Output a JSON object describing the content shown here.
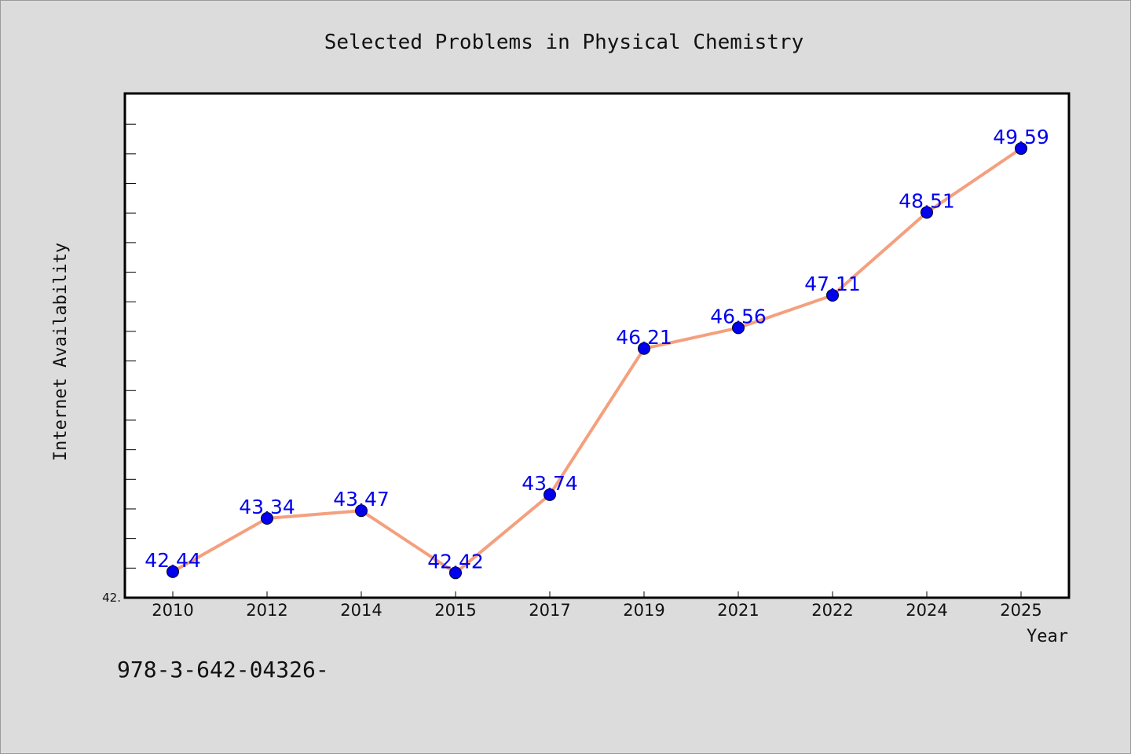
{
  "chart_data": {
    "type": "line",
    "title": "Selected Problems in Physical Chemistry",
    "xlabel": "Year",
    "ylabel": "Internet Availability",
    "categories": [
      "2010",
      "2012",
      "2014",
      "2015",
      "2017",
      "2019",
      "2021",
      "2022",
      "2024",
      "2025"
    ],
    "series": [
      {
        "values": [
          42.44,
          43.34,
          43.47,
          42.42,
          43.74,
          46.21,
          46.56,
          47.11,
          48.51,
          49.59
        ]
      }
    ],
    "data_labels": [
      "42.44",
      "43.34",
      "43.47",
      "42.42",
      "43.74",
      "46.21",
      "46.56",
      "47.11",
      "48.51",
      "49.59"
    ],
    "ylim": [
      42.0,
      50.52
    ],
    "y_min_label": "42.",
    "grid": false,
    "colors": {
      "background": "#dcdcdc",
      "plot_background": "#ffffff",
      "line": "#f4a07e",
      "marker": "#0000ee",
      "data_label": "#0000ee"
    }
  },
  "footer_text": "978-3-642-04326-"
}
